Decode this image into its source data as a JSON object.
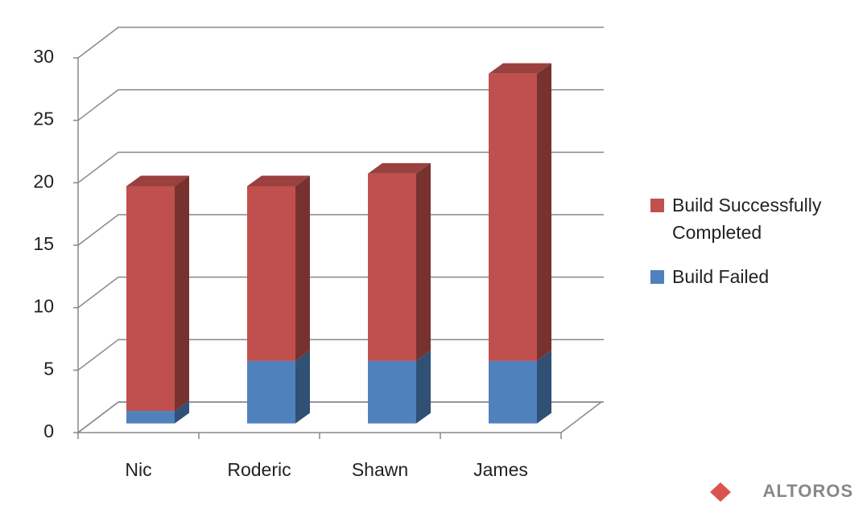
{
  "chart_data": {
    "type": "bar3d_stacked",
    "categories": [
      "Nic",
      "Roderic",
      "Shawn",
      "James"
    ],
    "series": [
      {
        "name": "Build Successfully Completed",
        "color": "#c0504d",
        "values": [
          18,
          14,
          15,
          23
        ]
      },
      {
        "name": "Build Failed",
        "color": "#4f81bd",
        "values": [
          1,
          5,
          5,
          5
        ]
      }
    ],
    "ylim": [
      0,
      30
    ],
    "yticks": [
      0,
      5,
      10,
      15,
      20,
      25,
      30
    ],
    "grid": true,
    "legend": "right"
  },
  "logo": "ALTOROS"
}
